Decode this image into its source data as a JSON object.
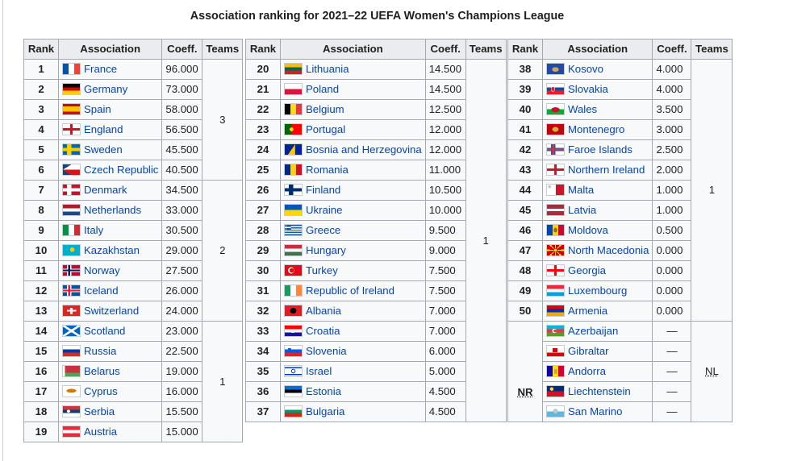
{
  "caption": "Association ranking for 2021–22 UEFA Women's Champions League",
  "headers": {
    "rank": "Rank",
    "association": "Association",
    "coeff": "Coeff.",
    "teams": "Teams"
  },
  "tables": [
    {
      "rows": [
        {
          "rank": "1",
          "name": "France",
          "coeff": "96.000",
          "flag": "france-flag-icon"
        },
        {
          "rank": "2",
          "name": "Germany",
          "coeff": "73.000",
          "flag": "germany-flag-icon"
        },
        {
          "rank": "3",
          "name": "Spain",
          "coeff": "58.000",
          "flag": "spain-flag-icon"
        },
        {
          "rank": "4",
          "name": "England",
          "coeff": "56.500",
          "flag": "england-flag-icon"
        },
        {
          "rank": "5",
          "name": "Sweden",
          "coeff": "45.500",
          "flag": "sweden-flag-icon"
        },
        {
          "rank": "6",
          "name": "Czech Republic",
          "coeff": "40.500",
          "flag": "czech-republic-flag-icon"
        },
        {
          "rank": "7",
          "name": "Denmark",
          "coeff": "34.500",
          "flag": "denmark-flag-icon"
        },
        {
          "rank": "8",
          "name": "Netherlands",
          "coeff": "33.000",
          "flag": "netherlands-flag-icon"
        },
        {
          "rank": "9",
          "name": "Italy",
          "coeff": "30.500",
          "flag": "italy-flag-icon"
        },
        {
          "rank": "10",
          "name": "Kazakhstan",
          "coeff": "29.000",
          "flag": "kazakhstan-flag-icon"
        },
        {
          "rank": "11",
          "name": "Norway",
          "coeff": "27.500",
          "flag": "norway-flag-icon"
        },
        {
          "rank": "12",
          "name": "Iceland",
          "coeff": "26.000",
          "flag": "iceland-flag-icon"
        },
        {
          "rank": "13",
          "name": "Switzerland",
          "coeff": "24.000",
          "flag": "switzerland-flag-icon"
        },
        {
          "rank": "14",
          "name": "Scotland",
          "coeff": "23.000",
          "flag": "scotland-flag-icon"
        },
        {
          "rank": "15",
          "name": "Russia",
          "coeff": "22.500",
          "flag": "russia-flag-icon"
        },
        {
          "rank": "16",
          "name": "Belarus",
          "coeff": "19.000",
          "flag": "belarus-flag-icon"
        },
        {
          "rank": "17",
          "name": "Cyprus",
          "coeff": "16.000",
          "flag": "cyprus-flag-icon"
        },
        {
          "rank": "18",
          "name": "Serbia",
          "coeff": "15.500",
          "flag": "serbia-flag-icon"
        },
        {
          "rank": "19",
          "name": "Austria",
          "coeff": "15.000",
          "flag": "austria-flag-icon"
        }
      ],
      "teams": [
        "3",
        "2",
        "1"
      ]
    },
    {
      "rows": [
        {
          "rank": "20",
          "name": "Lithuania",
          "coeff": "14.500",
          "flag": "lithuania-flag-icon"
        },
        {
          "rank": "21",
          "name": "Poland",
          "coeff": "14.500",
          "flag": "poland-flag-icon"
        },
        {
          "rank": "22",
          "name": "Belgium",
          "coeff": "12.500",
          "flag": "belgium-flag-icon"
        },
        {
          "rank": "23",
          "name": "Portugal",
          "coeff": "12.000",
          "flag": "portugal-flag-icon"
        },
        {
          "rank": "24",
          "name": "Bosnia and Herzegovina",
          "coeff": "12.000",
          "flag": "bosnia-flag-icon"
        },
        {
          "rank": "25",
          "name": "Romania",
          "coeff": "11.000",
          "flag": "romania-flag-icon"
        },
        {
          "rank": "26",
          "name": "Finland",
          "coeff": "10.500",
          "flag": "finland-flag-icon"
        },
        {
          "rank": "27",
          "name": "Ukraine",
          "coeff": "10.000",
          "flag": "ukraine-flag-icon"
        },
        {
          "rank": "28",
          "name": "Greece",
          "coeff": "9.500",
          "flag": "greece-flag-icon"
        },
        {
          "rank": "29",
          "name": "Hungary",
          "coeff": "9.000",
          "flag": "hungary-flag-icon"
        },
        {
          "rank": "30",
          "name": "Turkey",
          "coeff": "7.500",
          "flag": "turkey-flag-icon"
        },
        {
          "rank": "31",
          "name": "Republic of Ireland",
          "coeff": "7.500",
          "flag": "ireland-flag-icon"
        },
        {
          "rank": "32",
          "name": "Albania",
          "coeff": "7.000",
          "flag": "albania-flag-icon"
        },
        {
          "rank": "33",
          "name": "Croatia",
          "coeff": "7.000",
          "flag": "croatia-flag-icon"
        },
        {
          "rank": "34",
          "name": "Slovenia",
          "coeff": "6.000",
          "flag": "slovenia-flag-icon"
        },
        {
          "rank": "35",
          "name": "Israel",
          "coeff": "5.000",
          "flag": "israel-flag-icon"
        },
        {
          "rank": "36",
          "name": "Estonia",
          "coeff": "4.500",
          "flag": "estonia-flag-icon"
        },
        {
          "rank": "37",
          "name": "Bulgaria",
          "coeff": "4.500",
          "flag": "bulgaria-flag-icon"
        }
      ],
      "teams": [
        "1"
      ]
    },
    {
      "rows": [
        {
          "rank": "38",
          "name": "Kosovo",
          "coeff": "4.000",
          "flag": "kosovo-flag-icon"
        },
        {
          "rank": "39",
          "name": "Slovakia",
          "coeff": "4.000",
          "flag": "slovakia-flag-icon"
        },
        {
          "rank": "40",
          "name": "Wales",
          "coeff": "3.500",
          "flag": "wales-flag-icon"
        },
        {
          "rank": "41",
          "name": "Montenegro",
          "coeff": "3.000",
          "flag": "montenegro-flag-icon"
        },
        {
          "rank": "42",
          "name": "Faroe Islands",
          "coeff": "2.500",
          "flag": "faroe-islands-flag-icon"
        },
        {
          "rank": "43",
          "name": "Northern Ireland",
          "coeff": "2.000",
          "flag": "northern-ireland-flag-icon"
        },
        {
          "rank": "44",
          "name": "Malta",
          "coeff": "1.000",
          "flag": "malta-flag-icon"
        },
        {
          "rank": "45",
          "name": "Latvia",
          "coeff": "1.000",
          "flag": "latvia-flag-icon"
        },
        {
          "rank": "46",
          "name": "Moldova",
          "coeff": "0.500",
          "flag": "moldova-flag-icon"
        },
        {
          "rank": "47",
          "name": "North Macedonia",
          "coeff": "0.000",
          "flag": "north-macedonia-flag-icon"
        },
        {
          "rank": "48",
          "name": "Georgia",
          "coeff": "0.000",
          "flag": "georgia-flag-icon"
        },
        {
          "rank": "49",
          "name": "Luxembourg",
          "coeff": "0.000",
          "flag": "luxembourg-flag-icon"
        },
        {
          "rank": "50",
          "name": "Armenia",
          "coeff": "0.000",
          "flag": "armenia-flag-icon"
        },
        {
          "rank": "NR",
          "name": "Azerbaijan",
          "coeff": "—",
          "flag": "azerbaijan-flag-icon"
        },
        {
          "rank": "NR",
          "name": "Gibraltar",
          "coeff": "—",
          "flag": "gibraltar-flag-icon"
        },
        {
          "rank": "NR",
          "name": "Andorra",
          "coeff": "—",
          "flag": "andorra-flag-icon"
        },
        {
          "rank": "NR",
          "name": "Liechtenstein",
          "coeff": "—",
          "flag": "liechtenstein-flag-icon"
        },
        {
          "rank": "NR",
          "name": "San Marino",
          "coeff": "—",
          "flag": "san-marino-flag-icon"
        }
      ],
      "teams": [
        "1",
        "NL"
      ],
      "nr_label": "NR"
    }
  ]
}
